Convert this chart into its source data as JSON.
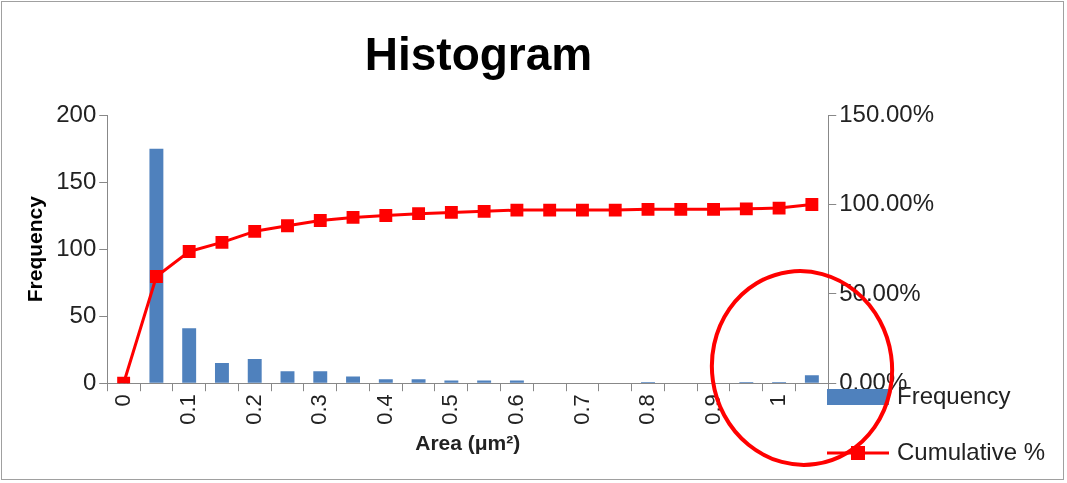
{
  "chart_data": {
    "type": "bar",
    "title": "Histogram",
    "xlabel": "Area (μm²)",
    "ylabel": "Frequency",
    "categories": [
      "0",
      null,
      "0.1",
      null,
      "0.2",
      null,
      "0.3",
      null,
      "0.4",
      null,
      "0.5",
      null,
      "0.6",
      null,
      "0.7",
      null,
      "0.8",
      null,
      "0.9",
      null,
      "1",
      null
    ],
    "series": [
      {
        "name": "Frequency",
        "color": "#4f81bd",
        "values": [
          0,
          175,
          41,
          15,
          18,
          9,
          9,
          5,
          3,
          3,
          2,
          2,
          2,
          0,
          0,
          0,
          1,
          0,
          0,
          1,
          1,
          6
        ]
      },
      {
        "name": "Cumulative %",
        "type": "line",
        "axis": "y2",
        "color": "#ff0000",
        "values": [
          0,
          59.7,
          73.7,
          78.8,
          85,
          88.1,
          91.1,
          92.8,
          93.9,
          94.9,
          95.6,
          96.2,
          96.9,
          96.9,
          96.9,
          96.9,
          97.3,
          97.3,
          97.3,
          97.6,
          98,
          100
        ]
      }
    ],
    "ylim": [
      0,
      200
    ],
    "yticks": [
      0,
      50,
      100,
      150,
      200
    ],
    "y2lim": [
      0,
      150
    ],
    "y2ticks": [
      {
        "value": 0,
        "label": "0.00%"
      },
      {
        "value": 50,
        "label": "50.00%"
      },
      {
        "value": 100,
        "label": "100.00%"
      },
      {
        "value": 150,
        "label": "150.00%"
      }
    ],
    "marker": "square",
    "legend": "bottom right"
  }
}
